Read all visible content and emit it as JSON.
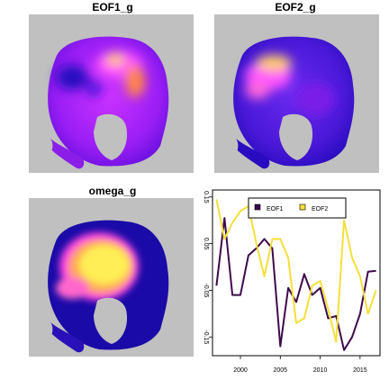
{
  "panels": {
    "eof1_title": "EOF1_g",
    "eof2_title": "EOF2_g",
    "omega_title": "omega_g"
  },
  "colors": {
    "land": "#c0c0c0",
    "ocean_base": "#8800e8",
    "deep_blue": "#1a0aa8",
    "magenta": "#ff33ff",
    "orange": "#ff8844",
    "yellow": "#ffe84a",
    "eof1_line": "#3d0a4a",
    "eof2_line": "#f5df3a"
  },
  "chart_data": {
    "type": "line",
    "title": "",
    "xlabel": "",
    "ylabel": "",
    "xlim": [
      1996.5,
      2017.5
    ],
    "ylim": [
      -0.19,
      0.165
    ],
    "xticks": [
      2000,
      2005,
      2010,
      2015
    ],
    "xtick_labels": [
      "2000",
      "2005",
      "2010",
      "2015"
    ],
    "yticks": [
      -0.15,
      -0.05,
      0.05,
      0.15
    ],
    "ytick_labels": [
      "-0.15",
      "-0.05",
      "0.05",
      "0.15"
    ],
    "legend_position": "top-right",
    "x": [
      1997,
      1998,
      1999,
      2000,
      2001,
      2002,
      2003,
      2004,
      2005,
      2006,
      2007,
      2008,
      2009,
      2010,
      2011,
      2012,
      2013,
      2014,
      2015,
      2016,
      2017
    ],
    "series": [
      {
        "name": "EOF1",
        "color": "#3d0a4a",
        "values": [
          -0.04,
          0.105,
          -0.06,
          -0.06,
          0.025,
          0.04,
          0.06,
          0.04,
          -0.17,
          -0.045,
          -0.075,
          -0.015,
          -0.06,
          -0.045,
          -0.11,
          -0.105,
          -0.178,
          -0.15,
          -0.1,
          -0.01,
          -0.008
        ]
      },
      {
        "name": "EOF2",
        "color": "#f5df3a",
        "values": [
          0.145,
          0.06,
          0.095,
          0.12,
          0.13,
          0.05,
          -0.02,
          0.06,
          0.06,
          0.02,
          -0.12,
          -0.11,
          -0.04,
          -0.03,
          -0.09,
          -0.16,
          0.1,
          0.02,
          -0.02,
          -0.1,
          -0.05
        ]
      }
    ]
  }
}
